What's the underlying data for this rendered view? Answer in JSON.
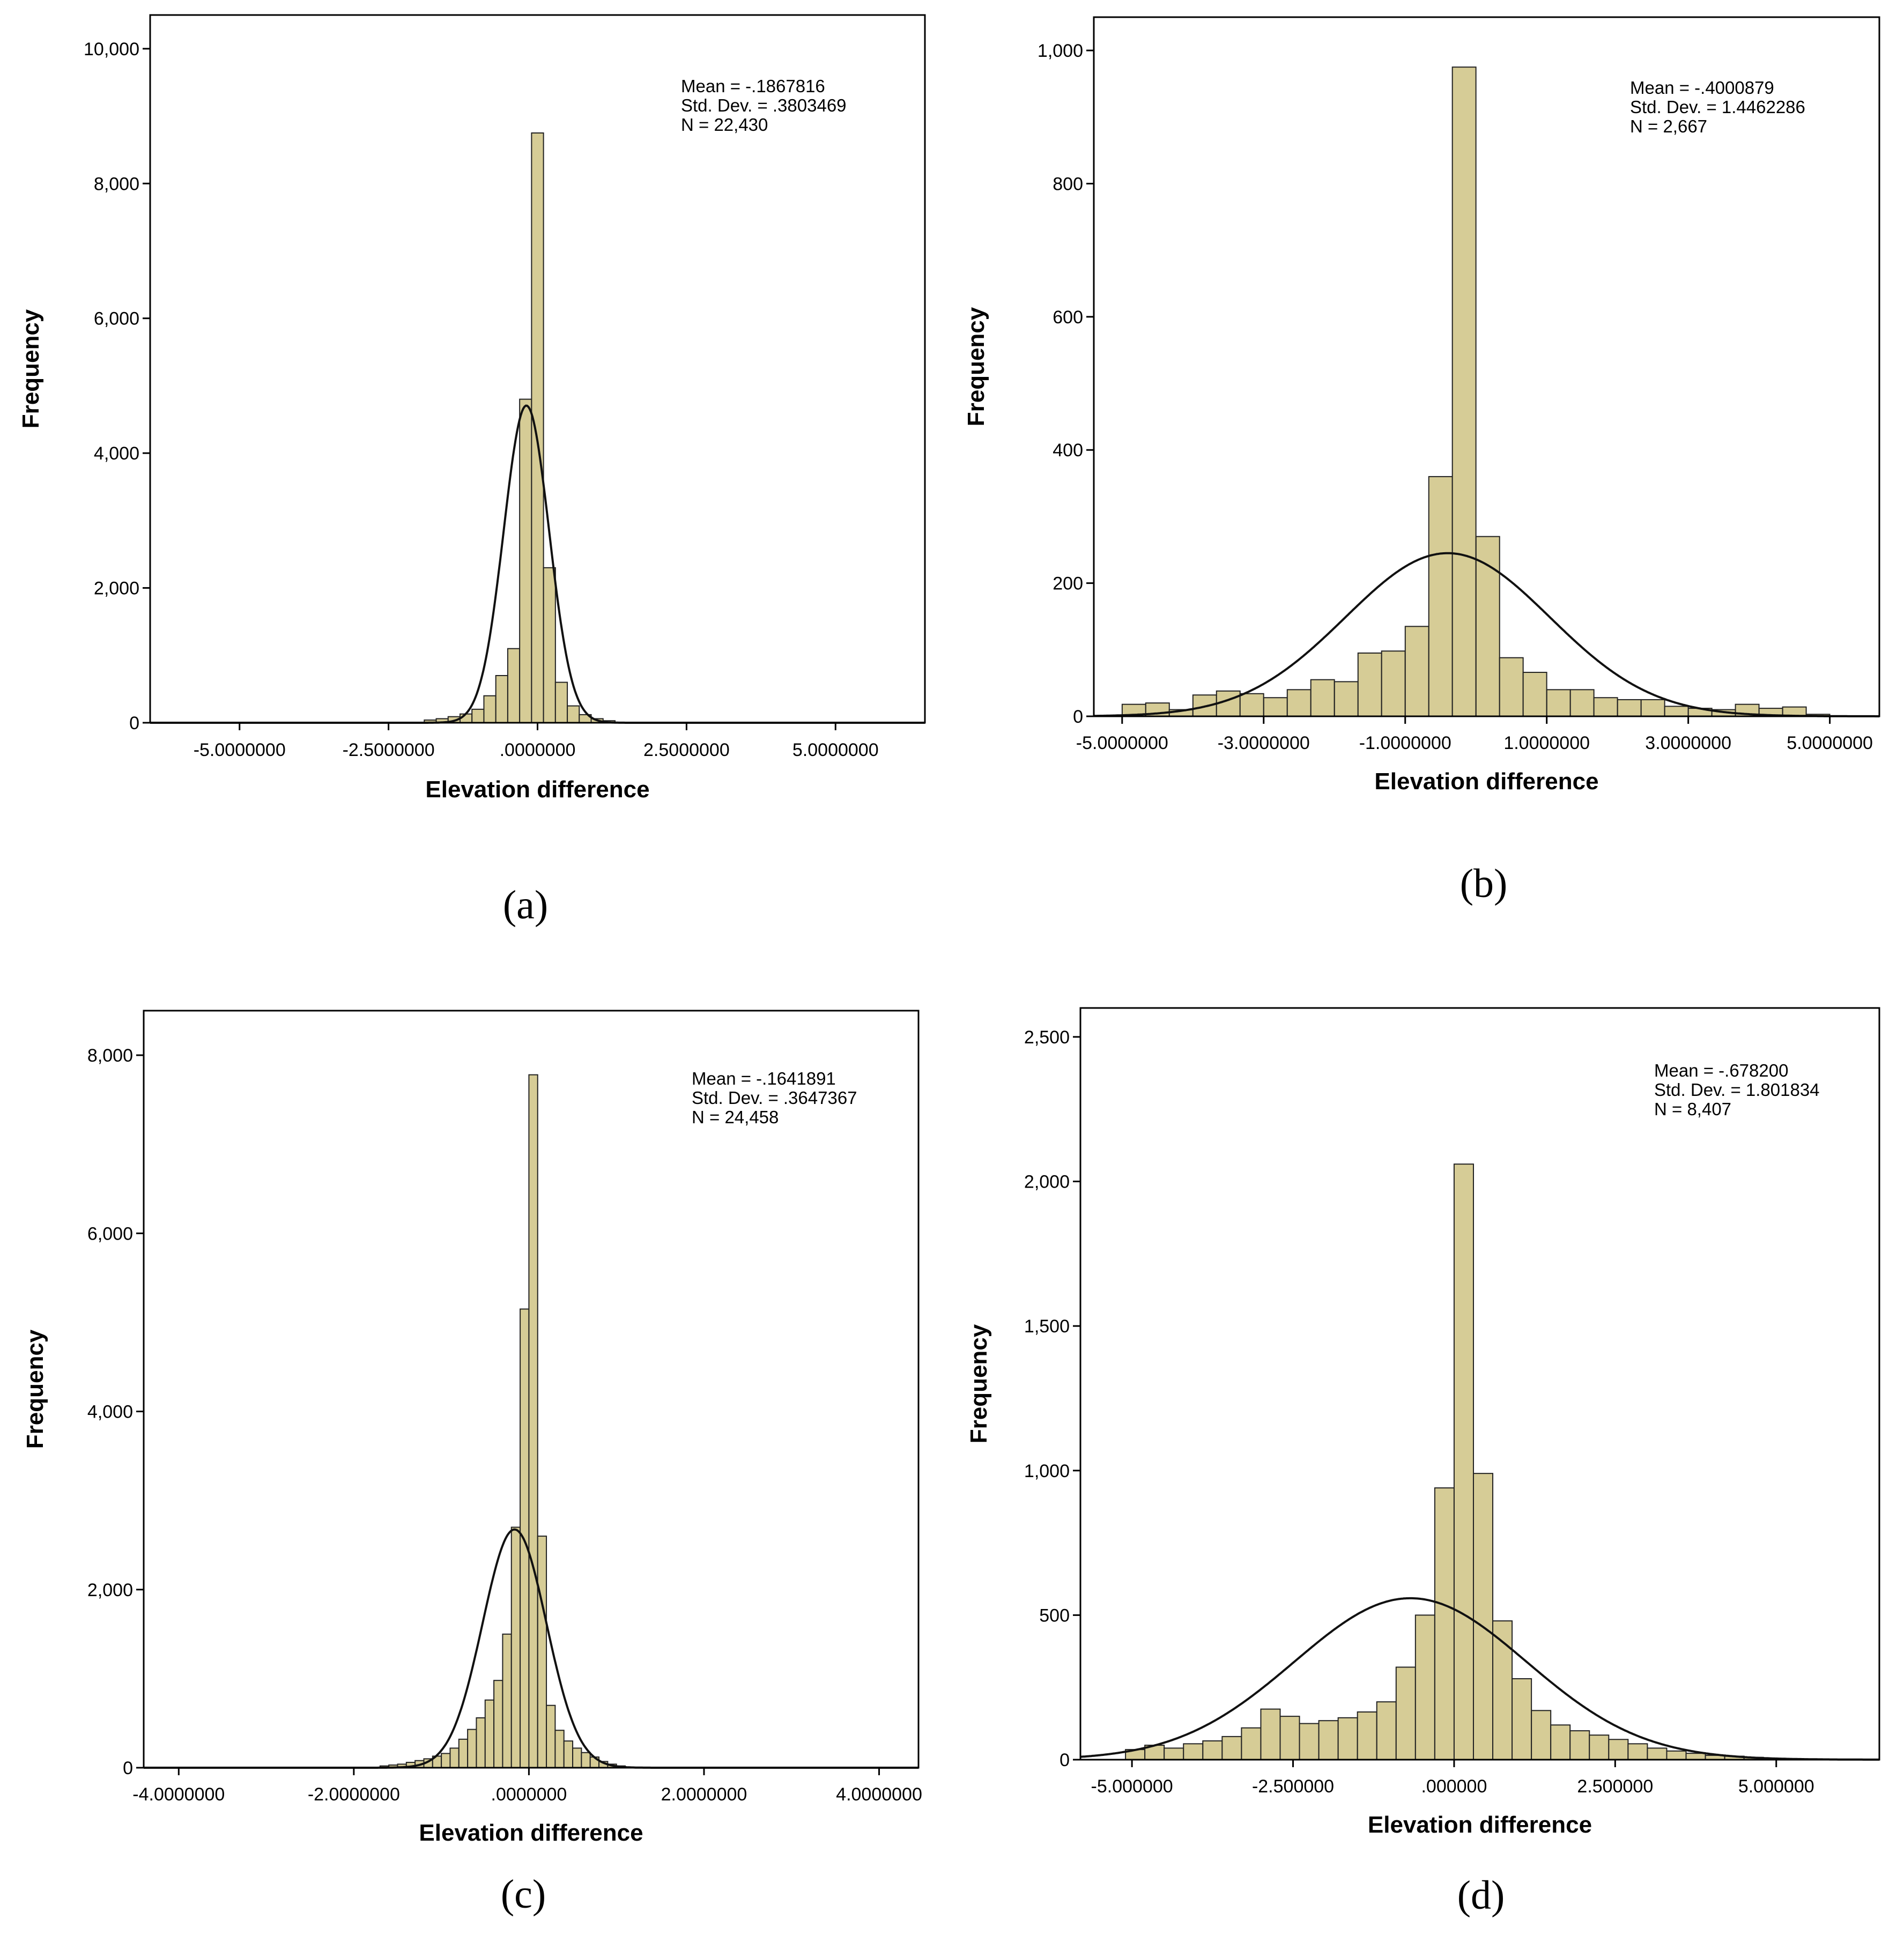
{
  "chart_data": [
    {
      "type": "bar",
      "panel": "a",
      "caption": "(a)",
      "xlabel": "Elevation difference",
      "ylabel": "Frequency",
      "xlim": [
        -6.5,
        6.5
      ],
      "ylim": [
        0,
        10500
      ],
      "xticks": [
        -5,
        -2.5,
        0,
        2.5,
        5
      ],
      "xtick_labels": [
        "-5.0000000",
        "-2.5000000",
        ".0000000",
        "2.5000000",
        "5.0000000"
      ],
      "yticks": [
        0,
        2000,
        4000,
        6000,
        8000,
        10000
      ],
      "ytick_labels": [
        "0",
        "2,000",
        "4,000",
        "6,000",
        "8,000",
        "10,000"
      ],
      "stats": [
        "Mean = -.1867816",
        "Std. Dev. = .3803469",
        "N = 22,430"
      ],
      "bin_width": 0.2,
      "bins_x": [
        -1.8,
        -1.6,
        -1.4,
        -1.2,
        -1.0,
        -0.8,
        -0.6,
        -0.4,
        -0.2,
        0.0,
        0.2,
        0.4,
        0.6,
        0.8,
        1.0,
        1.2
      ],
      "values": [
        40,
        60,
        90,
        130,
        200,
        400,
        700,
        1100,
        4800,
        8750,
        2300,
        600,
        250,
        120,
        60,
        30
      ],
      "normal": {
        "mean": -0.1867816,
        "sd": 0.3803469,
        "n": 22430
      }
    },
    {
      "type": "bar",
      "panel": "b",
      "caption": "(b)",
      "xlabel": "Elevation difference",
      "ylabel": "Frequency",
      "xlim": [
        -5.4,
        5.7
      ],
      "ylim": [
        0,
        1050
      ],
      "xticks": [
        -5,
        -3,
        -1,
        1,
        3,
        5
      ],
      "xtick_labels": [
        "-5.0000000",
        "-3.0000000",
        "-1.0000000",
        "1.0000000",
        "3.0000000",
        "5.0000000"
      ],
      "yticks": [
        0,
        200,
        400,
        600,
        800,
        1000
      ],
      "ytick_labels": [
        "0",
        "200",
        "400",
        "600",
        "800",
        "1,000"
      ],
      "stats": [
        "Mean = -.4000879",
        "Std. Dev. = 1.4462286",
        "N = 2,667"
      ],
      "bin_width": 0.333,
      "bins_x": [
        -4.833,
        -4.5,
        -4.167,
        -3.833,
        -3.5,
        -3.167,
        -2.833,
        -2.5,
        -2.167,
        -1.833,
        -1.5,
        -1.167,
        -0.833,
        -0.5,
        -0.167,
        0.167,
        0.5,
        0.833,
        1.167,
        1.5,
        1.833,
        2.167,
        2.5,
        2.833,
        3.167,
        3.5,
        3.833,
        4.167,
        4.5,
        4.833
      ],
      "values": [
        18,
        20,
        10,
        32,
        38,
        34,
        28,
        40,
        55,
        52,
        95,
        98,
        135,
        360,
        975,
        270,
        88,
        66,
        40,
        40,
        28,
        25,
        25,
        15,
        12,
        10,
        18,
        12,
        14,
        3
      ],
      "normal": {
        "mean": -0.4000879,
        "sd": 1.4462286,
        "n": 2667
      }
    },
    {
      "type": "bar",
      "panel": "c",
      "caption": "(c)",
      "xlabel": "Elevation difference",
      "ylabel": "Frequency",
      "xlim": [
        -4.4,
        4.45
      ],
      "ylim": [
        0,
        8500
      ],
      "xticks": [
        -4,
        -2,
        0,
        2,
        4
      ],
      "xtick_labels": [
        "-4.0000000",
        "-2.0000000",
        ".0000000",
        "2.0000000",
        "4.0000000"
      ],
      "yticks": [
        0,
        2000,
        4000,
        6000,
        8000
      ],
      "ytick_labels": [
        "0",
        "2,000",
        "4,000",
        "6,000",
        "8,000"
      ],
      "stats": [
        "Mean = -.1641891",
        "Std. Dev. = .3647367",
        "N = 24,458"
      ],
      "bin_width": 0.1,
      "bins_x": [
        -1.65,
        -1.55,
        -1.45,
        -1.35,
        -1.25,
        -1.15,
        -1.05,
        -0.95,
        -0.85,
        -0.75,
        -0.65,
        -0.55,
        -0.45,
        -0.35,
        -0.25,
        -0.15,
        -0.05,
        0.05,
        0.15,
        0.25,
        0.35,
        0.45,
        0.55,
        0.65,
        0.75,
        0.85,
        0.95,
        1.05
      ],
      "values": [
        20,
        30,
        40,
        60,
        80,
        100,
        130,
        160,
        220,
        320,
        430,
        560,
        760,
        980,
        1500,
        2700,
        5150,
        7780,
        2600,
        700,
        420,
        300,
        220,
        170,
        120,
        70,
        40,
        20
      ],
      "normal": {
        "mean": -0.1641891,
        "sd": 0.3647367,
        "n": 24458
      }
    },
    {
      "type": "bar",
      "panel": "d",
      "caption": "(d)",
      "xlabel": "Elevation difference",
      "ylabel": "Frequency",
      "xlim": [
        -5.8,
        6.6
      ],
      "ylim": [
        0,
        2600
      ],
      "xticks": [
        -5,
        -2.5,
        0,
        2.5,
        5
      ],
      "xtick_labels": [
        "-5.000000",
        "-2.500000",
        ".000000",
        "2.500000",
        "5.000000"
      ],
      "yticks": [
        0,
        500,
        1000,
        1500,
        2000,
        2500
      ],
      "ytick_labels": [
        "0",
        "500",
        "1,000",
        "1,500",
        "2,000",
        "2,500"
      ],
      "stats": [
        "Mean = -.678200",
        "Std. Dev. = 1.801834",
        "N = 8,407"
      ],
      "bin_width": 0.3,
      "bins_x": [
        -4.95,
        -4.65,
        -4.35,
        -4.05,
        -3.75,
        -3.45,
        -3.15,
        -2.85,
        -2.55,
        -2.25,
        -1.95,
        -1.65,
        -1.35,
        -1.05,
        -0.75,
        -0.45,
        -0.15,
        0.15,
        0.45,
        0.75,
        1.05,
        1.35,
        1.65,
        1.95,
        2.25,
        2.55,
        2.85,
        3.15,
        3.45,
        3.75,
        4.05,
        4.35,
        4.65
      ],
      "values": [
        35,
        50,
        40,
        55,
        65,
        80,
        110,
        175,
        150,
        125,
        135,
        145,
        165,
        200,
        320,
        500,
        940,
        2060,
        990,
        480,
        280,
        170,
        120,
        100,
        85,
        70,
        55,
        40,
        30,
        22,
        15,
        12,
        8
      ],
      "normal": {
        "mean": -0.6782,
        "sd": 1.801834,
        "n": 8407
      }
    }
  ]
}
